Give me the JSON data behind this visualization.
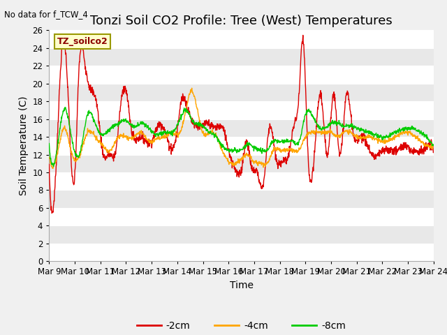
{
  "title": "Tonzi Soil CO2 Profile: Tree (West) Temperatures",
  "no_data_text": "No data for f_TCW_4",
  "xlabel": "Time",
  "ylabel": "Soil Temperature (C)",
  "legend_label": "TZ_soilco2",
  "ylim": [
    0,
    26
  ],
  "yticks": [
    0,
    2,
    4,
    6,
    8,
    10,
    12,
    14,
    16,
    18,
    20,
    22,
    24,
    26
  ],
  "xtick_labels": [
    "Mar 9",
    "Mar 10",
    "Mar 11",
    "Mar 12",
    "Mar 13",
    "Mar 14",
    "Mar 15",
    "Mar 16",
    "Mar 17",
    "Mar 18",
    "Mar 19",
    "Mar 20",
    "Mar 21",
    "Mar 22",
    "Mar 23",
    "Mar 24"
  ],
  "line_colors": {
    "2cm": "#dd0000",
    "4cm": "#ffa500",
    "8cm": "#00cc00"
  },
  "legend_entries": [
    "-2cm",
    "-4cm",
    "-8cm"
  ],
  "legend_colors": [
    "#dd0000",
    "#ffa500",
    "#00cc00"
  ],
  "fig_bg_color": "#f0f0f0",
  "plot_bg_color": "#e8e8e8",
  "grid_color": "#ffffff",
  "title_fontsize": 13,
  "axis_label_fontsize": 10,
  "tick_fontsize": 8.5
}
